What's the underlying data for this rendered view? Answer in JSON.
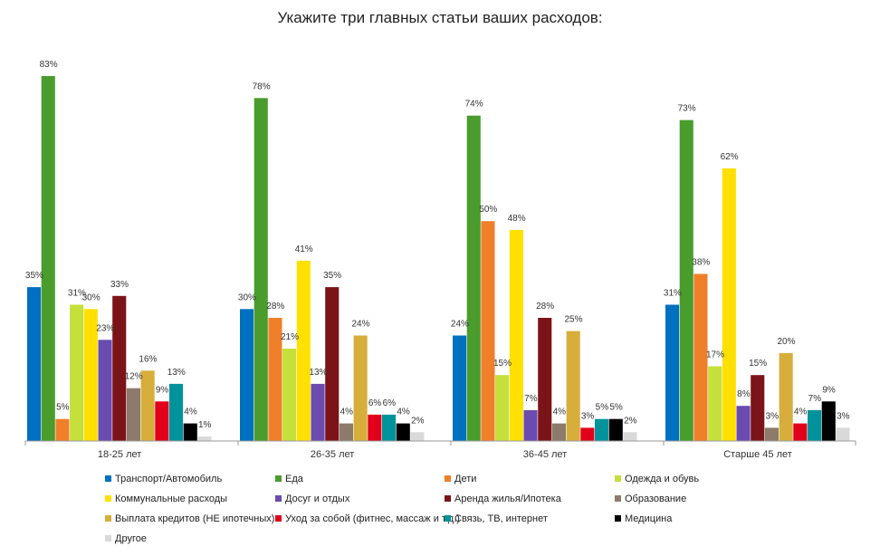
{
  "chart_data": {
    "type": "bar",
    "title": "Укажите три главных статьи ваших расходов:",
    "xlabel": "",
    "ylabel": "",
    "ylim": [
      0,
      85
    ],
    "grid": false,
    "legend_position": "bottom",
    "categories": [
      "18-25 лет",
      "26-35 лет",
      "36-45 лет",
      "Старше 45 лет"
    ],
    "series": [
      {
        "name": "Транспорт/Автомобиль",
        "color": "#0070c0",
        "values": [
          35,
          30,
          24,
          31
        ]
      },
      {
        "name": "Еда",
        "color": "#4a9c2d",
        "values": [
          83,
          78,
          74,
          73
        ]
      },
      {
        "name": "Дети",
        "color": "#f07f2a",
        "values": [
          5,
          28,
          50,
          38
        ]
      },
      {
        "name": "Одежда и обувь",
        "color": "#c5df3b",
        "values": [
          31,
          21,
          15,
          17
        ]
      },
      {
        "name": "Коммунальные расходы",
        "color": "#ffe000",
        "values": [
          30,
          41,
          48,
          62
        ]
      },
      {
        "name": "Досуг и отдых",
        "color": "#6a4bb0",
        "values": [
          23,
          13,
          7,
          8
        ]
      },
      {
        "name": "Аренда жилья/Ипотека",
        "color": "#7b1419",
        "values": [
          33,
          35,
          28,
          15
        ]
      },
      {
        "name": "Образование",
        "color": "#8c7b6b",
        "values": [
          12,
          4,
          4,
          3
        ]
      },
      {
        "name": "Выплата кредитов (НЕ ипотечных)",
        "color": "#d7ae3b",
        "values": [
          16,
          24,
          25,
          20
        ]
      },
      {
        "name": "Уход за собой (фитнес, массаж и т.д.)",
        "color": "#e0001b",
        "values": [
          9,
          6,
          3,
          4
        ]
      },
      {
        "name": "Связь, ТВ, интернет",
        "color": "#00939b",
        "values": [
          13,
          6,
          5,
          7
        ]
      },
      {
        "name": "Медицина",
        "color": "#000000",
        "values": [
          4,
          4,
          5,
          9
        ]
      },
      {
        "name": "Другое",
        "color": "#d9d9d9",
        "values": [
          1,
          2,
          2,
          3
        ]
      }
    ],
    "value_suffix": "%"
  }
}
